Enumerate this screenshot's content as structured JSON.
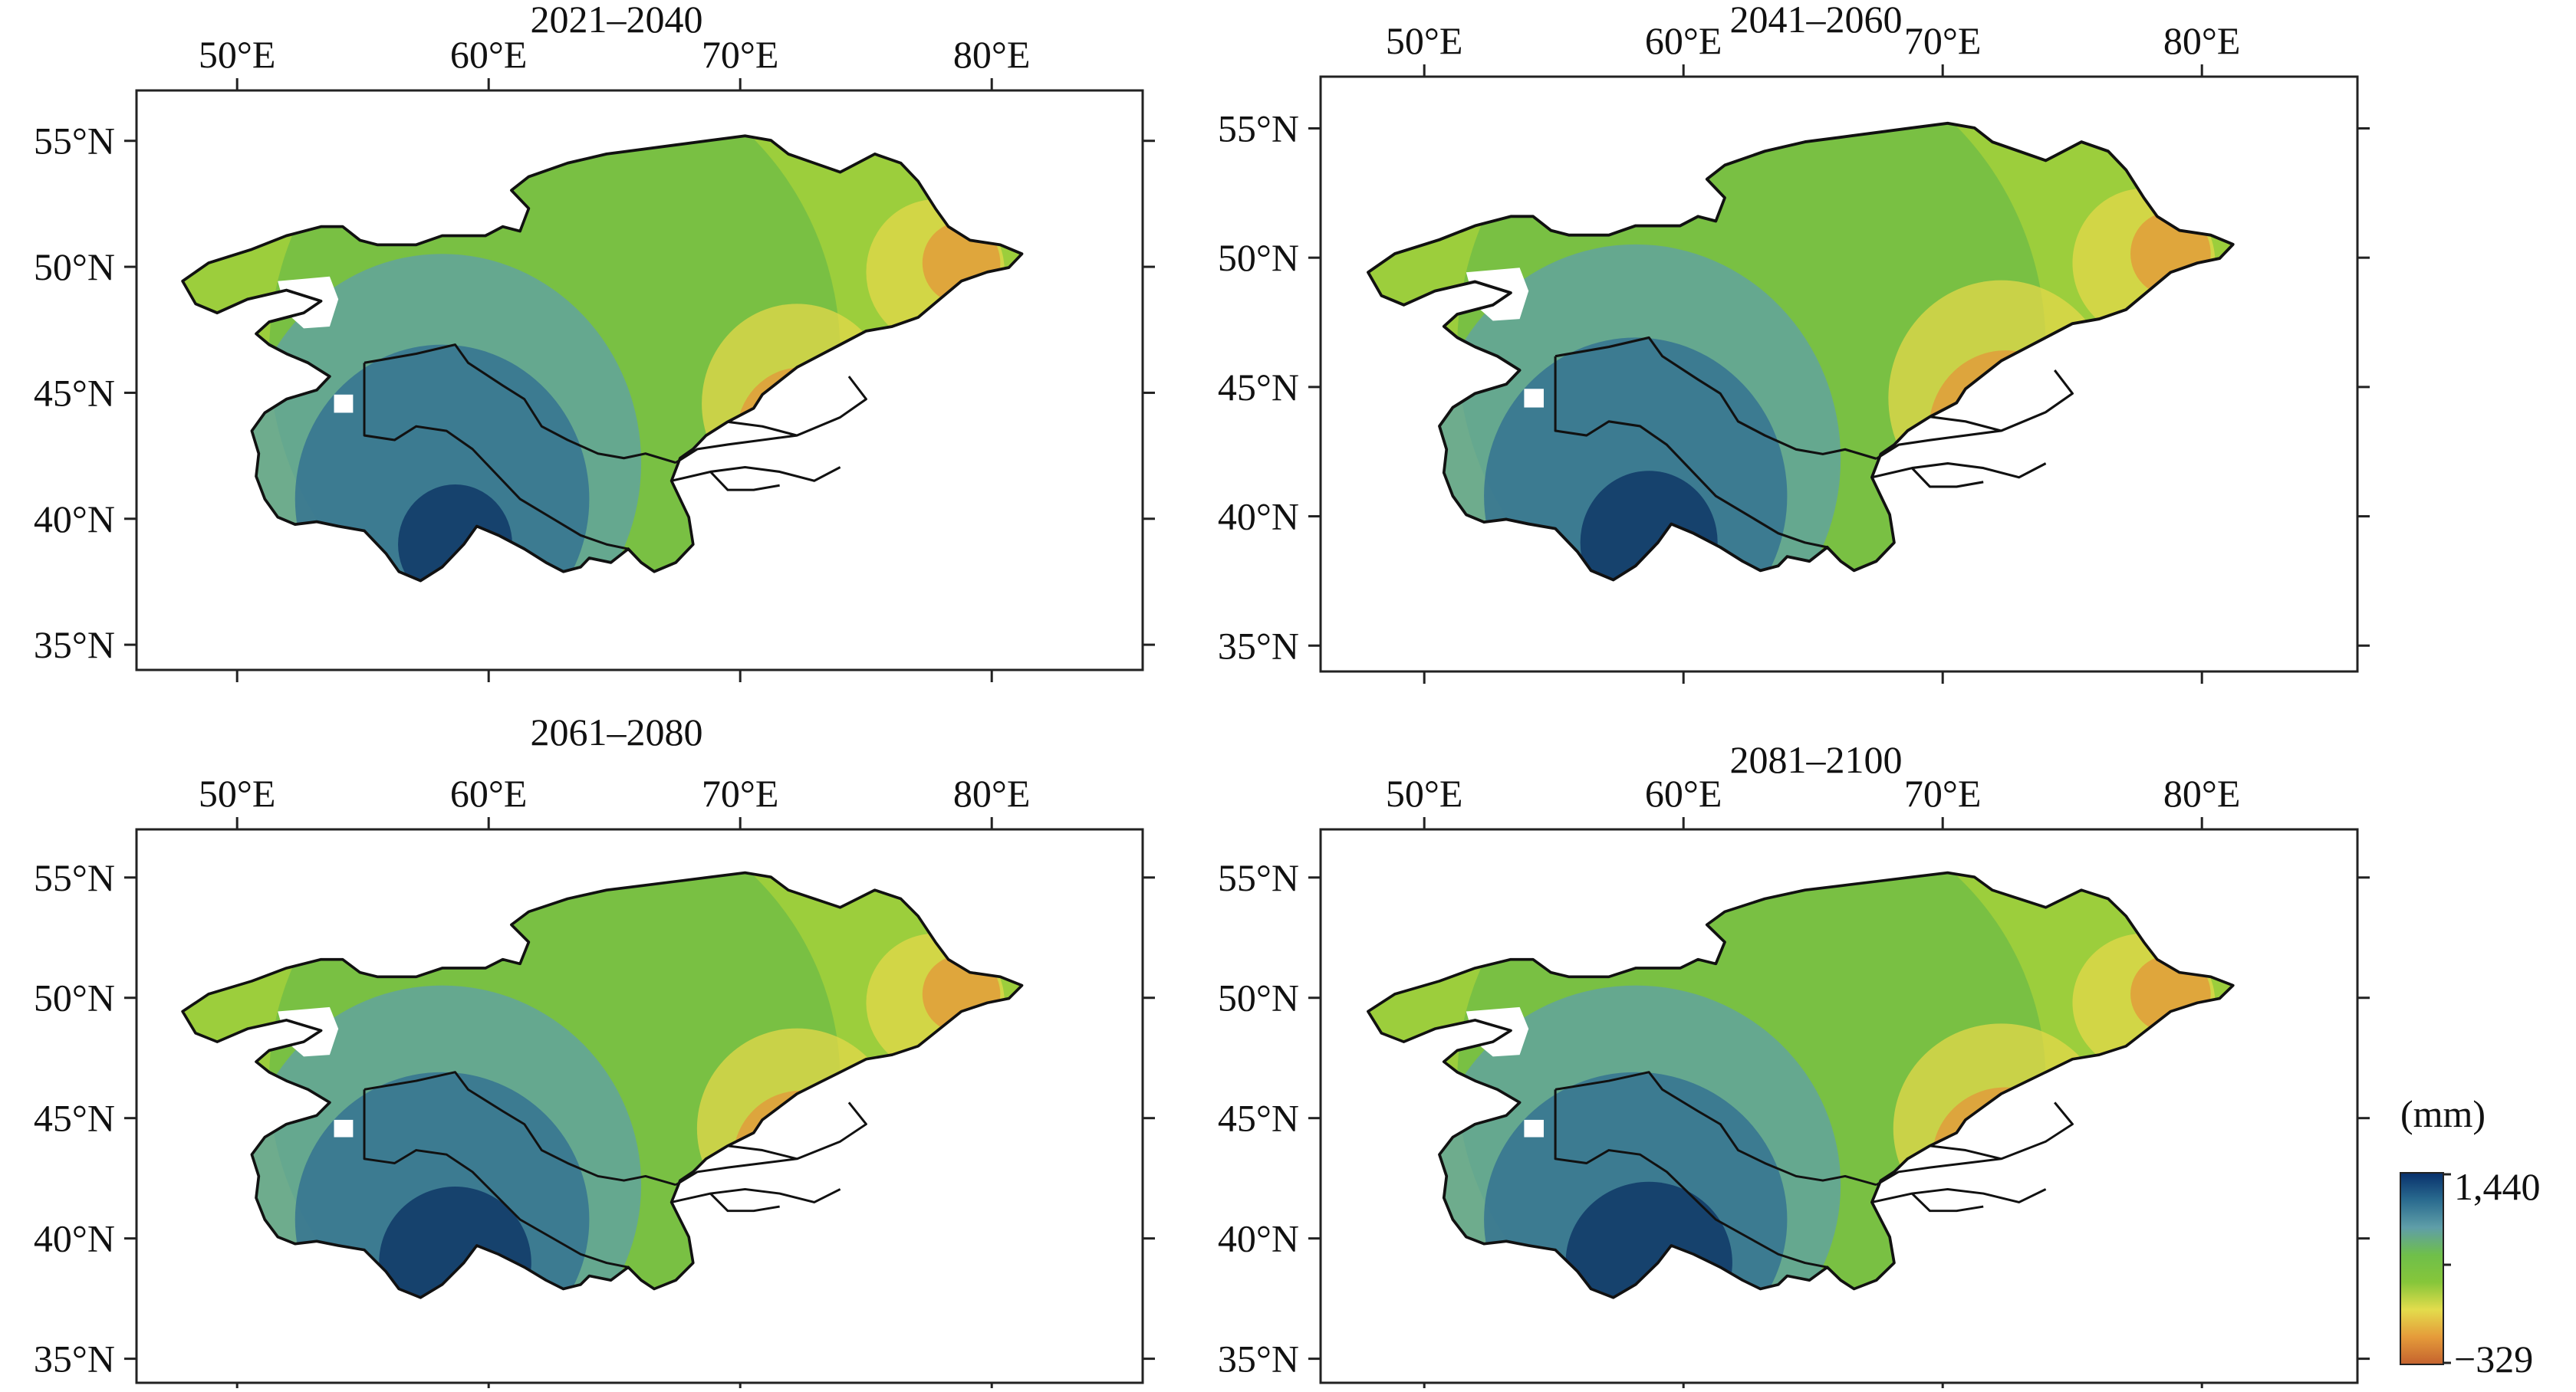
{
  "panels": [
    {
      "title": "2021–2040",
      "variant": 0
    },
    {
      "title": "2041–2060",
      "variant": 1
    },
    {
      "title": "2061–2080",
      "variant": 2
    },
    {
      "title": "2081–2100",
      "variant": 3
    }
  ],
  "axes": {
    "lon_labels": [
      "50°E",
      "60°E",
      "70°E",
      "80°E"
    ],
    "lat_labels": [
      "55°N",
      "50°N",
      "45°N",
      "40°N",
      "35°N"
    ],
    "lon_values": [
      50,
      60,
      70,
      80
    ],
    "lat_values": [
      55,
      50,
      45,
      40,
      35
    ],
    "lon_range": [
      46,
      86
    ],
    "lat_range": [
      34,
      57
    ]
  },
  "legend": {
    "unit": "(mm)",
    "max_label": "1,440",
    "min_label": "−329",
    "max_value": 1440,
    "min_value": -329,
    "colors": [
      "#08306b",
      "#2a6b8f",
      "#5f9ea8",
      "#6fbf4a",
      "#86c63a",
      "#e3dc4c",
      "#e59b3a",
      "#c4622e"
    ]
  },
  "palette": {
    "deep_blue": "#0a2f62",
    "blue": "#2f6c92",
    "teal": "#5fa0a8",
    "green": "#6dbb45",
    "light_green": "#9ccd3c",
    "yellow": "#e4d84a",
    "orange": "#e3953a",
    "brown": "#c0612f"
  }
}
